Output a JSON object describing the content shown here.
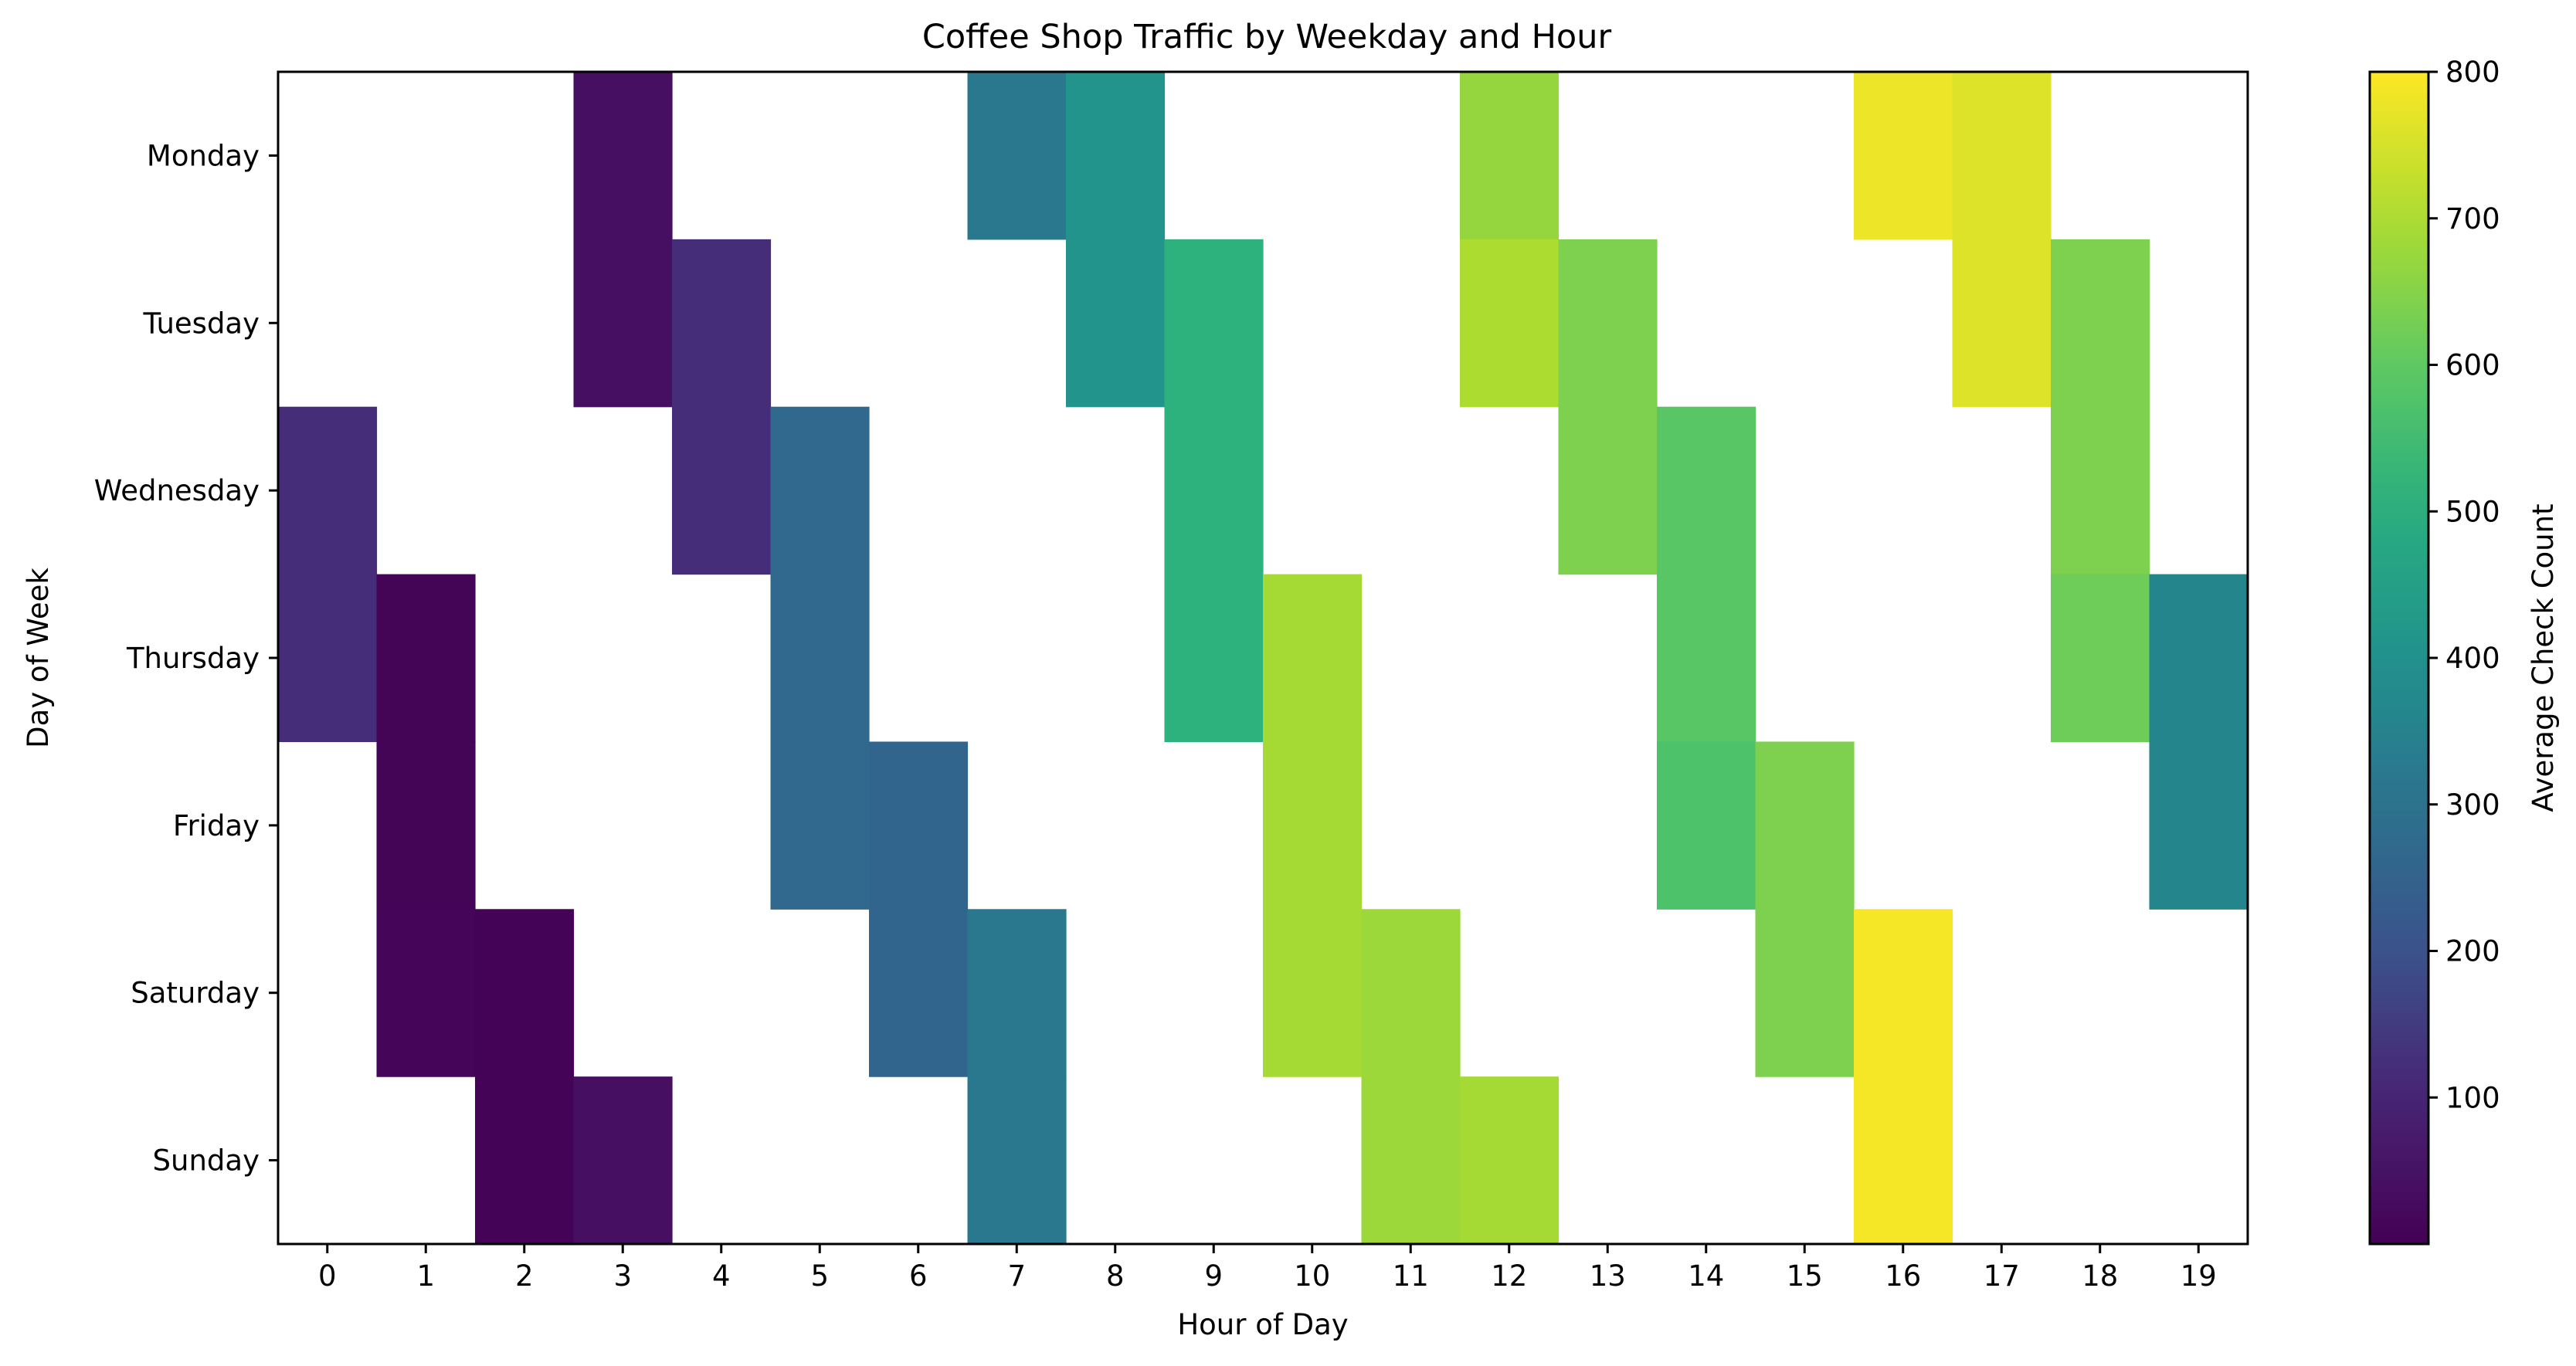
{
  "chart_data": {
    "type": "heatmap",
    "title": "Coffee Shop Traffic by Weekday and Hour",
    "xlabel": "Hour of Day",
    "ylabel": "Day of Week",
    "x": [
      0,
      1,
      2,
      3,
      4,
      5,
      6,
      7,
      8,
      9,
      10,
      11,
      12,
      13,
      14,
      15,
      16,
      17,
      18,
      19
    ],
    "y": [
      "Monday",
      "Tuesday",
      "Wednesday",
      "Thursday",
      "Friday",
      "Saturday",
      "Sunday"
    ],
    "values": [
      [
        null,
        null,
        null,
        40,
        null,
        null,
        null,
        320,
        410,
        null,
        null,
        null,
        670,
        null,
        null,
        null,
        780,
        760,
        null,
        null
      ],
      [
        null,
        null,
        null,
        40,
        120,
        null,
        null,
        null,
        410,
        510,
        null,
        null,
        700,
        640,
        null,
        null,
        null,
        760,
        640,
        null
      ],
      [
        120,
        null,
        null,
        null,
        120,
        270,
        null,
        null,
        null,
        510,
        null,
        null,
        null,
        640,
        590,
        null,
        null,
        null,
        640,
        null
      ],
      [
        120,
        10,
        null,
        null,
        null,
        270,
        null,
        null,
        null,
        510,
        690,
        null,
        null,
        null,
        590,
        null,
        null,
        null,
        620,
        360
      ],
      [
        null,
        10,
        null,
        null,
        null,
        270,
        260,
        null,
        null,
        null,
        690,
        null,
        null,
        null,
        570,
        640,
        null,
        null,
        null,
        360
      ],
      [
        null,
        15,
        5,
        null,
        null,
        null,
        260,
        320,
        null,
        null,
        690,
        680,
        null,
        null,
        null,
        640,
        790,
        null,
        null,
        null
      ],
      [
        null,
        null,
        5,
        40,
        null,
        null,
        null,
        320,
        null,
        null,
        null,
        680,
        690,
        null,
        null,
        null,
        790,
        null,
        null,
        null
      ]
    ],
    "colorbar": {
      "label": "Average Check Count",
      "min": 0,
      "max": 800,
      "ticks": [
        100,
        200,
        300,
        400,
        500,
        600,
        700,
        800
      ],
      "colormap": "viridis"
    },
    "grid": false,
    "missing_cells": "blank"
  }
}
